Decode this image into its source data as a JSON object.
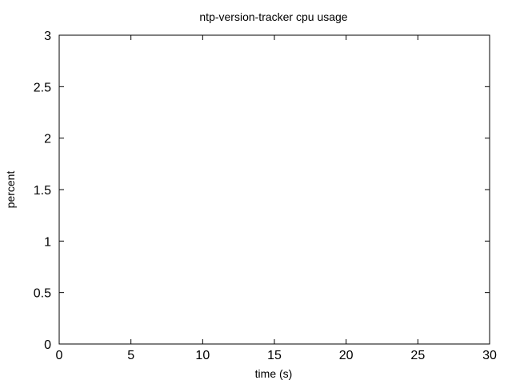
{
  "chart_data": {
    "type": "line",
    "title": "ntp-version-tracker cpu usage",
    "xlabel": "time (s)",
    "ylabel": "percent",
    "xlim": [
      0,
      30
    ],
    "ylim": [
      0,
      3
    ],
    "xticks": [
      "0",
      "5",
      "10",
      "15",
      "20",
      "25",
      "30"
    ],
    "yticks": [
      "0",
      "0.5",
      "1",
      "1.5",
      "2",
      "2.5",
      "3"
    ],
    "grid": false,
    "series": []
  }
}
